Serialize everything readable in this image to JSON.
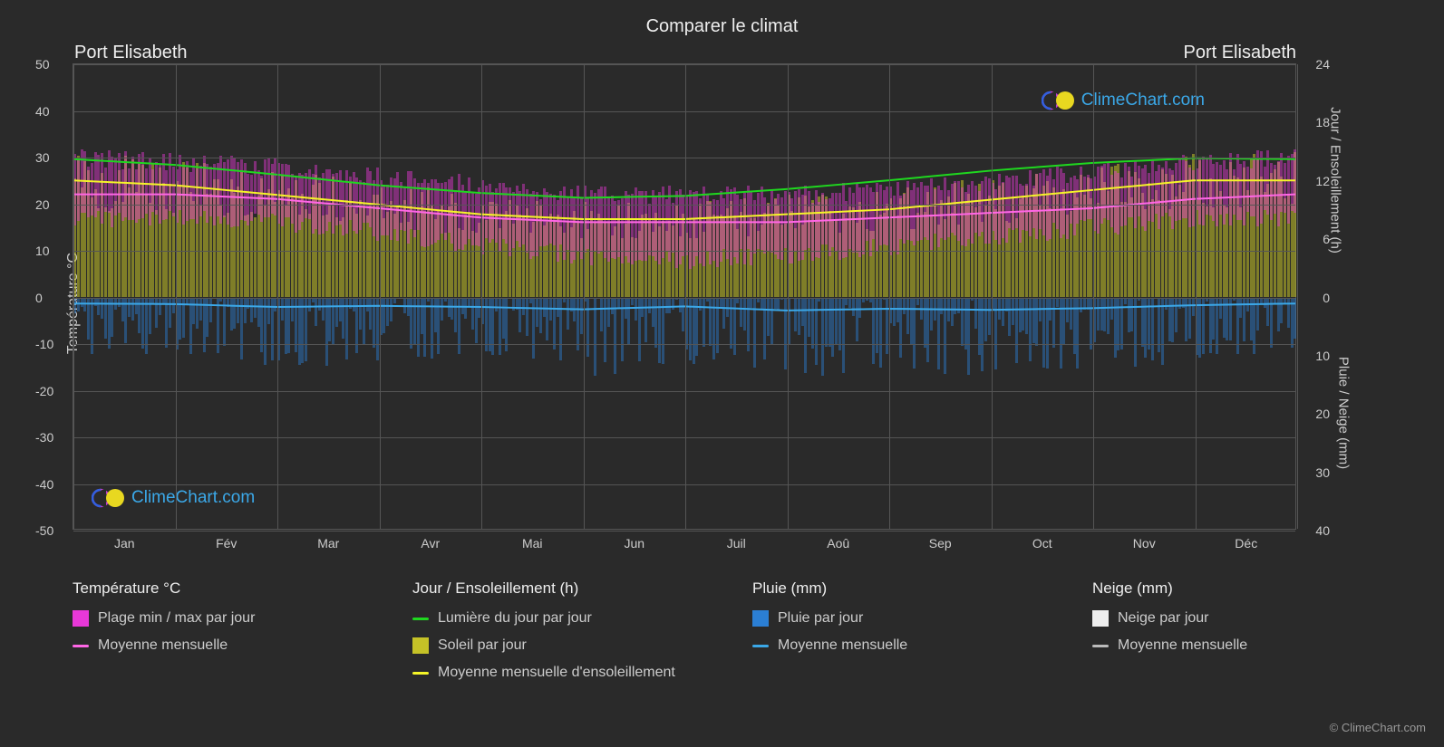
{
  "chart": {
    "title": "Comparer le climat",
    "location_left": "Port Elisabeth",
    "location_right": "Port Elisabeth",
    "background_color": "#2a2a2a",
    "grid_color": "#555555",
    "text_color": "#cccccc",
    "title_fontsize": 20,
    "months": [
      "Jan",
      "Fév",
      "Mar",
      "Avr",
      "Mai",
      "Jun",
      "Juil",
      "Aoû",
      "Sep",
      "Oct",
      "Nov",
      "Déc"
    ],
    "axis_left": {
      "label": "Température °C",
      "min": -50,
      "max": 50,
      "ticks": [
        -50,
        -40,
        -30,
        -20,
        -10,
        0,
        10,
        20,
        30,
        40,
        50
      ]
    },
    "axis_right_top": {
      "label": "Jour / Ensoleillement (h)",
      "min": 0,
      "max": 24,
      "zero_at_temp": 0,
      "top_at_temp": 50,
      "ticks": [
        0,
        6,
        12,
        18,
        24
      ]
    },
    "axis_right_bot": {
      "label": "Pluie / Neige (mm)",
      "min": 0,
      "max": 40,
      "zero_at_temp": 0,
      "bottom_at_temp": -50,
      "ticks": [
        0,
        10,
        20,
        30,
        40
      ]
    },
    "series": {
      "temp_range": {
        "color": "#e838d8",
        "max": [
          30,
          29,
          28,
          26,
          24,
          22,
          22,
          22,
          23,
          25,
          27,
          29
        ],
        "min": [
          17,
          17,
          16,
          14,
          11,
          9,
          8,
          9,
          11,
          13,
          15,
          17
        ]
      },
      "temp_mean": {
        "color": "#ff66e6",
        "line_width": 2,
        "values": [
          22,
          22,
          21,
          19,
          17,
          16,
          16,
          16,
          17,
          18,
          19,
          21
        ]
      },
      "daylight": {
        "color": "#1fd81f",
        "line_width": 2,
        "values_hours": [
          14.2,
          13.6,
          12.6,
          11.5,
          10.7,
          10.2,
          10.4,
          11.1,
          12.0,
          13.0,
          13.8,
          14.3
        ]
      },
      "sunshine_bars": {
        "color": "#c5c227",
        "opacity": 0.55,
        "values_hours": [
          12,
          11.5,
          10.5,
          9.5,
          8.5,
          8,
          8,
          8.5,
          9,
          10,
          11,
          12
        ]
      },
      "sunshine_mean": {
        "color": "#f5f528",
        "line_width": 2,
        "values_hours": [
          12,
          11.5,
          10.5,
          9.5,
          8.5,
          8,
          8,
          8.5,
          9,
          10,
          11,
          12
        ]
      },
      "rain_bars": {
        "color": "#2b7fd4",
        "opacity": 0.45,
        "max_mm": [
          8,
          7,
          9,
          8,
          7,
          10,
          8,
          11,
          9,
          10,
          9,
          8
        ]
      },
      "rain_mean": {
        "color": "#3ba8e8",
        "line_width": 2,
        "values_mm": [
          1.2,
          1.3,
          1.8,
          1.6,
          1.8,
          2.2,
          1.7,
          2.4,
          2.1,
          2.3,
          2.0,
          1.5
        ]
      },
      "snow": {
        "color": "#eeeeee"
      }
    }
  },
  "legend": {
    "groups": [
      {
        "title": "Température °C",
        "items": [
          {
            "swatch_type": "block",
            "color": "#e838d8",
            "label": "Plage min / max par jour"
          },
          {
            "swatch_type": "line",
            "color": "#ff66e6",
            "label": "Moyenne mensuelle"
          }
        ]
      },
      {
        "title": "Jour / Ensoleillement (h)",
        "items": [
          {
            "swatch_type": "line",
            "color": "#1fd81f",
            "label": "Lumière du jour par jour"
          },
          {
            "swatch_type": "block",
            "color": "#c5c227",
            "label": "Soleil par jour"
          },
          {
            "swatch_type": "line",
            "color": "#f5f528",
            "label": "Moyenne mensuelle d'ensoleillement"
          }
        ]
      },
      {
        "title": "Pluie (mm)",
        "items": [
          {
            "swatch_type": "block",
            "color": "#2b7fd4",
            "label": "Pluie par jour"
          },
          {
            "swatch_type": "line",
            "color": "#3ba8e8",
            "label": "Moyenne mensuelle"
          }
        ]
      },
      {
        "title": "Neige (mm)",
        "items": [
          {
            "swatch_type": "block",
            "color": "#eeeeee",
            "label": "Neige par jour"
          },
          {
            "swatch_type": "line",
            "color": "#bbbbbb",
            "label": "Moyenne mensuelle"
          }
        ]
      }
    ]
  },
  "branding": {
    "name": "ClimeChart.com",
    "name_color": "#3ba8e8",
    "copyright": "© ClimeChart.com"
  }
}
